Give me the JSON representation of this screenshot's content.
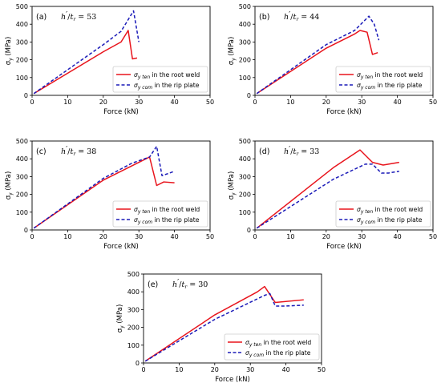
{
  "chart_data": [
    {
      "type": "line",
      "panel_label": "(a)",
      "ratio_text": "h'/tr = 53",
      "xlabel": "Force (kN)",
      "ylabel": "σy (MPa)",
      "xlim": [
        0,
        50
      ],
      "ylim": [
        0,
        500
      ],
      "xticks": [
        0,
        10,
        20,
        30,
        40,
        50
      ],
      "yticks": [
        0,
        100,
        200,
        300,
        400,
        500
      ],
      "grid": false,
      "legend_position": "lower-right",
      "series": [
        {
          "name": "σy ten in the root weld",
          "color": "#e8141c",
          "style": "solid",
          "x": [
            0.5,
            20,
            25,
            27,
            28.2,
            29.5
          ],
          "y": [
            10,
            245,
            300,
            365,
            205,
            210
          ]
        },
        {
          "name": "σy com in the rip plate",
          "color": "#1a1ab8",
          "style": "dashed",
          "x": [
            0.5,
            20,
            25,
            28.5,
            30
          ],
          "y": [
            10,
            285,
            360,
            475,
            300
          ]
        }
      ]
    },
    {
      "type": "line",
      "panel_label": "(b)",
      "ratio_text": "h'/tr = 44",
      "xlabel": "Force (kN)",
      "ylabel": "σy (MPa)",
      "xlim": [
        0,
        50
      ],
      "ylim": [
        0,
        500
      ],
      "xticks": [
        0,
        10,
        20,
        30,
        40,
        50
      ],
      "yticks": [
        0,
        100,
        200,
        300,
        400,
        500
      ],
      "grid": false,
      "legend_position": "lower-right",
      "series": [
        {
          "name": "σy ten in the root weld",
          "color": "#e8141c",
          "style": "solid",
          "x": [
            0.5,
            20,
            28,
            29.5,
            31.5,
            33,
            34.5
          ],
          "y": [
            10,
            265,
            345,
            365,
            355,
            230,
            240
          ]
        },
        {
          "name": "σy com in the rip plate",
          "color": "#1a1ab8",
          "style": "dashed",
          "x": [
            0.5,
            20,
            28,
            32,
            33.5,
            34.8
          ],
          "y": [
            10,
            285,
            365,
            445,
            400,
            310
          ]
        }
      ]
    },
    {
      "type": "line",
      "panel_label": "(c)",
      "ratio_text": "h'/tr = 38",
      "xlabel": "Force (kN)",
      "ylabel": "σy (MPa)",
      "xlim": [
        0,
        50
      ],
      "ylim": [
        0,
        500
      ],
      "xticks": [
        0,
        10,
        20,
        30,
        40,
        50
      ],
      "yticks": [
        0,
        100,
        200,
        300,
        400,
        500
      ],
      "grid": false,
      "legend_position": "lower-right",
      "series": [
        {
          "name": "σy ten in the root weld",
          "color": "#e8141c",
          "style": "solid",
          "x": [
            0.5,
            20,
            28,
            33,
            35,
            37,
            40
          ],
          "y": [
            10,
            280,
            360,
            410,
            250,
            270,
            265
          ]
        },
        {
          "name": "σy com in the rip plate",
          "color": "#1a1ab8",
          "style": "dashed",
          "x": [
            0.5,
            20,
            28,
            33,
            35,
            36.5,
            40
          ],
          "y": [
            10,
            290,
            375,
            410,
            470,
            305,
            330
          ]
        }
      ]
    },
    {
      "type": "line",
      "panel_label": "(d)",
      "ratio_text": "h'/tr = 33",
      "xlabel": "Force (kN)",
      "ylabel": "σy (MPa)",
      "xlim": [
        0,
        50
      ],
      "ylim": [
        0,
        500
      ],
      "xticks": [
        0,
        10,
        20,
        30,
        40,
        50
      ],
      "yticks": [
        0,
        100,
        200,
        300,
        400,
        500
      ],
      "grid": false,
      "legend_position": "lower-right",
      "series": [
        {
          "name": "σy ten in the root weld",
          "color": "#e8141c",
          "style": "solid",
          "x": [
            0.5,
            22,
            29.5,
            33,
            36,
            40.5
          ],
          "y": [
            10,
            350,
            450,
            380,
            365,
            380
          ]
        },
        {
          "name": "σy com in the rip plate",
          "color": "#1a1ab8",
          "style": "dashed",
          "x": [
            0.5,
            22,
            31,
            33,
            35.5,
            37.5,
            40.5
          ],
          "y": [
            10,
            285,
            370,
            370,
            320,
            320,
            330
          ]
        }
      ]
    },
    {
      "type": "line",
      "panel_label": "(e)",
      "ratio_text": "h'/tr = 30",
      "xlabel": "Force (kN)",
      "ylabel": "σy (MPa)",
      "xlim": [
        0,
        50
      ],
      "ylim": [
        0,
        500
      ],
      "xticks": [
        0,
        10,
        20,
        30,
        40,
        50
      ],
      "yticks": [
        0,
        100,
        200,
        300,
        400,
        500
      ],
      "grid": false,
      "legend_position": "lower-right",
      "series": [
        {
          "name": "σy ten in the root weld",
          "color": "#e8141c",
          "style": "solid",
          "x": [
            0.5,
            20,
            32,
            34,
            37,
            45
          ],
          "y": [
            10,
            270,
            400,
            430,
            340,
            355
          ]
        },
        {
          "name": "σy com in the rip plate",
          "color": "#1a1ab8",
          "style": "dashed",
          "x": [
            0.5,
            20,
            34,
            35.5,
            37,
            40,
            45
          ],
          "y": [
            10,
            245,
            380,
            390,
            320,
            320,
            325
          ]
        }
      ]
    }
  ],
  "legend": {
    "ten_symbol": "σ",
    "ten_sub": "y ten",
    "ten_text": " in the root weld",
    "com_symbol": "σ",
    "com_sub": "y com",
    "com_text": " in the rip plate"
  },
  "ratio_parts": {
    "h": "h",
    "prime": "′",
    "slash": "/",
    "t": "t",
    "t_sub": "r"
  },
  "axis_text": {
    "ylabel_symbol": "σ",
    "ylabel_sub": "y",
    "ylabel_unit": " (MPa)"
  }
}
